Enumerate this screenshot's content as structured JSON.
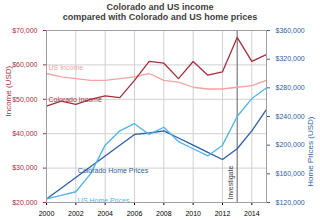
{
  "chart_data": {
    "type": "line",
    "title": "Colorado and US income\ncompared with Colorado and US home prices",
    "y_label": "Income (USD)",
    "y2_label": "Home Prices (USD)",
    "x": [
      2000,
      2001,
      2002,
      2003,
      2004,
      2005,
      2006,
      2007,
      2008,
      2009,
      2010,
      2011,
      2012,
      2013,
      2014,
      2015
    ],
    "xlim": [
      2000,
      2015
    ],
    "xticks": [
      2000,
      2002,
      2004,
      2006,
      2008,
      2010,
      2012,
      2014
    ],
    "ylim": [
      20000,
      70000
    ],
    "yticks": [
      {
        "value": 20000,
        "label": "$20,000"
      },
      {
        "value": 30000,
        "label": "$30,000"
      },
      {
        "value": 40000,
        "label": "$40,000"
      },
      {
        "value": 50000,
        "label": "$50,000"
      },
      {
        "value": 60000,
        "label": "$60,000"
      },
      {
        "value": 70000,
        "label": "$70,000"
      }
    ],
    "y2lim": [
      120000,
      360000
    ],
    "y2ticks": [
      {
        "value": 120000,
        "label": "$120,000"
      },
      {
        "value": 160000,
        "label": "$160,000"
      },
      {
        "value": 200000,
        "label": "$200,000"
      },
      {
        "value": 240000,
        "label": "$240,000"
      },
      {
        "value": 280000,
        "label": "$280,000"
      },
      {
        "value": 320000,
        "label": "$320,000"
      },
      {
        "value": 360000,
        "label": "$360,000"
      }
    ],
    "grid": true,
    "series": [
      {
        "name": "US Income",
        "color": "#f2a3a3",
        "values": [
          57500,
          56500,
          56000,
          55500,
          55500,
          56000,
          56500,
          57500,
          55500,
          55000,
          53500,
          53000,
          53000,
          53500,
          54000,
          55500
        ]
      },
      {
        "name": "Colorado Income",
        "color": "#a3303c",
        "values": [
          48000,
          49500,
          48500,
          50000,
          51000,
          50500,
          55500,
          61000,
          60500,
          56000,
          61000,
          57000,
          58000,
          68000,
          61000,
          63000
        ]
      },
      {
        "name": "Colorado Home Prices",
        "color": "#2e5fa3",
        "axis": "y2",
        "values": [
          125000,
          140000,
          155000,
          170000,
          185000,
          200000,
          215000,
          217000,
          220000,
          210000,
          200000,
          190000,
          180000,
          195000,
          220000,
          250000
        ]
      },
      {
        "name": "US Home Prices",
        "color": "#4fb3e8",
        "axis": "y2",
        "values": [
          125000,
          130000,
          135000,
          160000,
          200000,
          220000,
          230000,
          215000,
          225000,
          205000,
          195000,
          185000,
          200000,
          240000,
          265000,
          280000
        ]
      }
    ],
    "annotations": [
      {
        "text": "Investigate",
        "x": 2013
      }
    ]
  }
}
